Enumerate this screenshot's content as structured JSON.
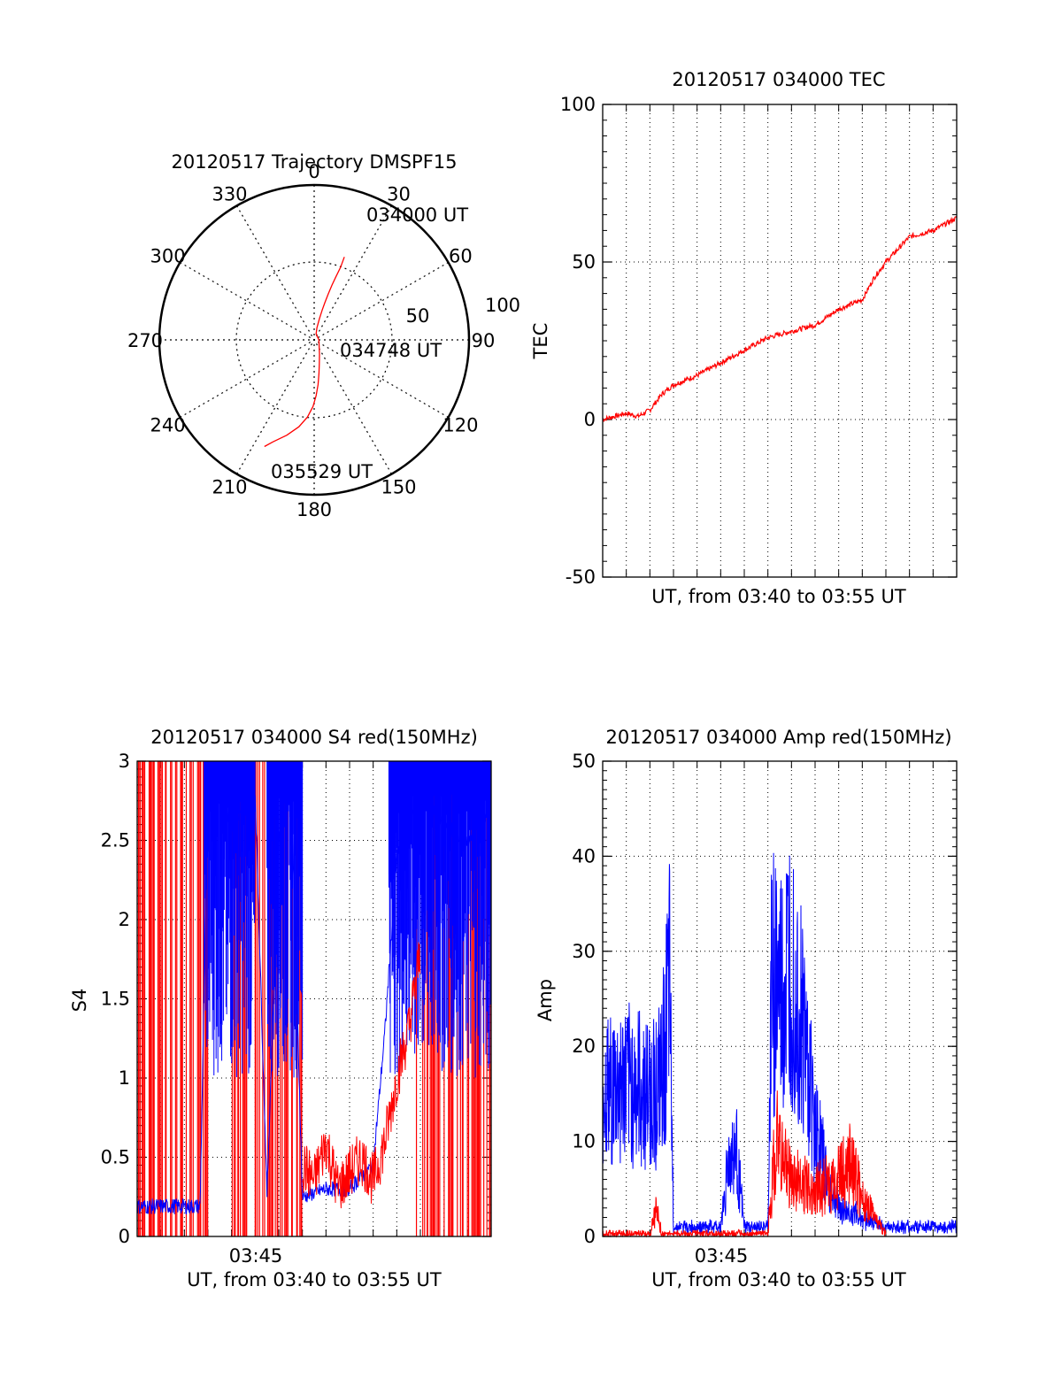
{
  "colors": {
    "red": "#ff0000",
    "blue": "#0000ff",
    "axis": "#000000"
  },
  "chart_data": [
    {
      "id": "trajectory",
      "type": "scatter",
      "subtype": "polar-skyplot",
      "title": "20120517 Trajectory DMSPF15",
      "angle_labels": [
        "0",
        "30",
        "60",
        "90",
        "120",
        "150",
        "180",
        "210",
        "240",
        "270",
        "300",
        "330"
      ],
      "radius_labels": [
        "50",
        "100"
      ],
      "start_label": "034000 UT",
      "mid_label": "034748 UT",
      "end_label": "035529 UT",
      "series": [
        {
          "color": "red",
          "points_az_r": [
            [
              20,
              57
            ],
            [
              20,
              50
            ],
            [
              19,
              43
            ],
            [
              18,
              37
            ],
            [
              17,
              31
            ],
            [
              16,
              25
            ],
            [
              15,
              20
            ],
            [
              14,
              14
            ],
            [
              13,
              8
            ],
            [
              18,
              4
            ],
            [
              90,
              3
            ],
            [
              140,
              5
            ],
            [
              160,
              10
            ],
            [
              168,
              16
            ],
            [
              172,
              22
            ],
            [
              175,
              29
            ],
            [
              178,
              36
            ],
            [
              181,
              43
            ],
            [
              185,
              50
            ],
            [
              190,
              57
            ],
            [
              196,
              64
            ],
            [
              202,
              71
            ],
            [
              205,
              76
            ]
          ]
        }
      ]
    },
    {
      "id": "tec",
      "type": "line",
      "title": "20120517 034000 TEC",
      "xlabel": "UT, from 03:40 to 03:55 UT",
      "ylabel": "TEC",
      "xlim": [
        "03:40",
        "03:55"
      ],
      "ylim": [
        -50,
        100
      ],
      "yticks": [
        "-50",
        "0",
        "50",
        "100"
      ],
      "grid": true,
      "series": [
        {
          "color": "red",
          "x": [
            "03:40:00",
            "03:41:00",
            "03:41:30",
            "03:42:00",
            "03:42:30",
            "03:43:00",
            "03:44:00",
            "03:45:00",
            "03:46:00",
            "03:47:00",
            "03:48:00",
            "03:49:00",
            "03:50:00",
            "03:51:00",
            "03:51:30",
            "03:52:00",
            "03:53:00",
            "03:54:00",
            "03:55:00"
          ],
          "values": [
            0,
            2,
            1,
            3,
            8,
            11,
            14,
            18,
            22,
            26,
            28,
            30,
            35,
            38,
            45,
            50,
            58,
            60,
            64
          ]
        }
      ]
    },
    {
      "id": "s4",
      "type": "line",
      "title": "20120517 034000 S4 red(150MHz)",
      "xlabel": "UT, from 03:40 to 03:55 UT",
      "ylabel": "S4",
      "xlim": [
        "03:40",
        "03:55"
      ],
      "ylim": [
        0,
        3
      ],
      "yticks": [
        "0",
        "0.5",
        "1",
        "1.5",
        "2",
        "2.5",
        "3"
      ],
      "xtick_labels": [
        "03:45"
      ],
      "grid": true,
      "series": [
        {
          "color": "blue",
          "x": [
            "03:40:00",
            "03:42:40",
            "03:43:00",
            "03:44:00",
            "03:45:00",
            "03:45:30",
            "03:46:00",
            "03:46:30",
            "03:47:00",
            "03:48:00",
            "03:49:00",
            "03:50:00",
            "03:50:30",
            "03:51:00",
            "03:52:00",
            "03:53:00",
            "03:54:00",
            "03:55:00"
          ],
          "values": [
            0.19,
            0.19,
            2.9,
            2.6,
            2.8,
            0.27,
            2.5,
            3.0,
            0.25,
            0.3,
            0.3,
            0.45,
            1.3,
            2.4,
            2.8,
            2.6,
            2.5,
            2.7
          ]
        },
        {
          "color": "red",
          "x": [
            "03:47:00",
            "03:47:30",
            "03:48:00",
            "03:48:30",
            "03:49:00",
            "03:49:30",
            "03:50:00",
            "03:50:30",
            "03:51:00",
            "03:51:30",
            "03:52:00"
          ],
          "values": [
            0.45,
            0.35,
            0.6,
            0.3,
            0.4,
            0.5,
            0.35,
            0.6,
            1.0,
            1.3,
            1.8
          ]
        }
      ]
    },
    {
      "id": "amp",
      "type": "line",
      "title": "20120517 034000 Amp red(150MHz)",
      "xlabel": "UT, from 03:40 to 03:55 UT",
      "ylabel": "Amp",
      "xlim": [
        "03:40",
        "03:55"
      ],
      "ylim": [
        0,
        50
      ],
      "yticks": [
        "0",
        "10",
        "20",
        "30",
        "40",
        "50"
      ],
      "xtick_labels": [
        "03:45"
      ],
      "grid": true,
      "series": [
        {
          "color": "blue",
          "x": [
            "03:40:00",
            "03:41:00",
            "03:42:00",
            "03:42:30",
            "03:42:50",
            "03:43:00",
            "03:45:00",
            "03:45:20",
            "03:45:40",
            "03:46:00",
            "03:47:00",
            "03:47:10",
            "03:47:40",
            "03:48:00",
            "03:48:30",
            "03:49:00",
            "03:49:30",
            "03:50:00",
            "03:51:00",
            "03:52:00",
            "03:55:00"
          ],
          "values": [
            15,
            16,
            15,
            16,
            26,
            1,
            1,
            8,
            9,
            1,
            1,
            28,
            25,
            30,
            22,
            12,
            6,
            3,
            2,
            1,
            1
          ]
        },
        {
          "color": "red",
          "x": [
            "03:40:00",
            "03:42:00",
            "03:42:15",
            "03:42:30",
            "03:47:00",
            "03:47:20",
            "03:48:00",
            "03:49:00",
            "03:50:00",
            "03:50:30",
            "03:51:00",
            "03:51:30",
            "03:52:00"
          ],
          "values": [
            0.3,
            0.3,
            3,
            0.3,
            0.3,
            10,
            6,
            5,
            6,
            8,
            4,
            2,
            0.3
          ]
        }
      ]
    }
  ]
}
